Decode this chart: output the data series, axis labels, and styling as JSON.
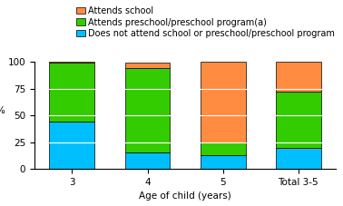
{
  "categories": [
    "3",
    "4",
    "5",
    "Total 3-5"
  ],
  "does_not_attend": [
    44,
    15,
    13,
    20
  ],
  "attends_preschool": [
    55,
    79,
    12,
    52
  ],
  "attends_school": [
    1,
    5,
    75,
    28
  ],
  "color_does_not_attend": "#00BFFF",
  "color_preschool": "#33CC00",
  "color_school": "#FF8C40",
  "ylabel": "%",
  "xlabel": "Age of child (years)",
  "ylim": [
    0,
    100
  ],
  "yticks": [
    0,
    25,
    50,
    75,
    100
  ],
  "legend_labels": [
    "Attends school",
    "Attends preschool/preschool program(a)",
    "Does not attend school or preschool/preschool program"
  ],
  "tick_fontsize": 7.5,
  "legend_fontsize": 7.0
}
